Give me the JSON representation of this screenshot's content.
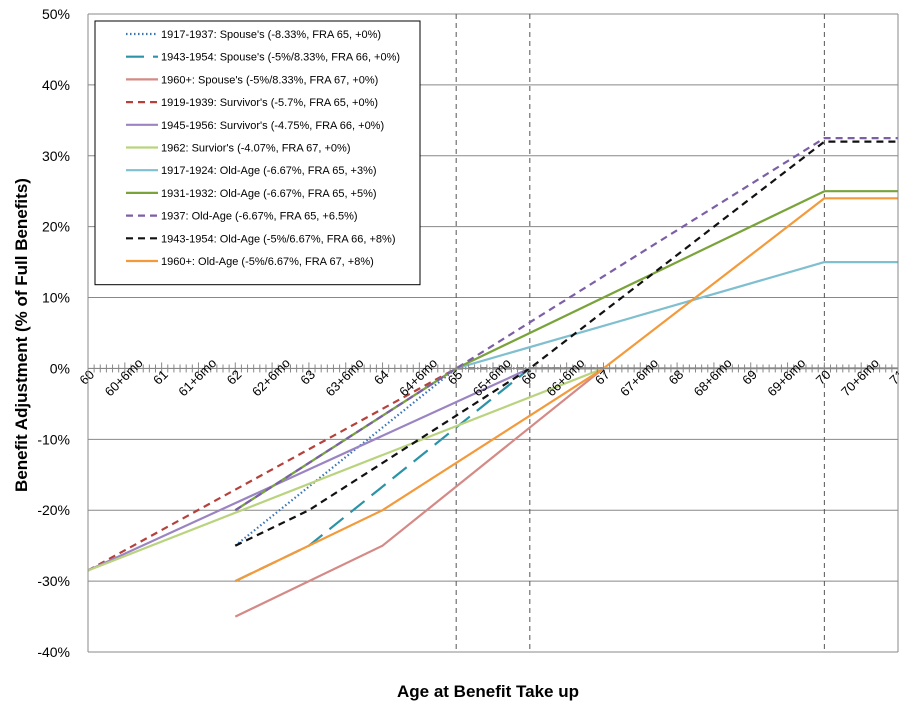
{
  "chart_data": {
    "type": "line",
    "title": "",
    "xlabel": "Age at Benefit Take up",
    "ylabel": "Benefit Adjustment (% of Full Benefits)",
    "ylim": [
      -40,
      50
    ],
    "yticks": [
      -40,
      -30,
      -20,
      -10,
      0,
      10,
      20,
      30,
      40,
      50
    ],
    "ytick_labels": [
      "-40%",
      "-30%",
      "-20%",
      "-10%",
      "0%",
      "10%",
      "20%",
      "30%",
      "40%",
      "50%"
    ],
    "xlim": [
      60,
      71
    ],
    "x_tick_labels": [
      "60",
      "60+6mo",
      "61",
      "61+6mo",
      "62",
      "62+6mo",
      "63",
      "63+6mo",
      "64",
      "64+6mo",
      "65",
      "65+6mo",
      "66",
      "66+6mo",
      "67",
      "67+6mo",
      "68",
      "68+6mo",
      "69",
      "69+6mo",
      "70",
      "70+6mo",
      "71"
    ],
    "x_tick_values": [
      60,
      60.5,
      61,
      61.5,
      62,
      62.5,
      63,
      63.5,
      64,
      64.5,
      65,
      65.5,
      66,
      66.5,
      67,
      67.5,
      68,
      68.5,
      69,
      69.5,
      70,
      70.5,
      71
    ],
    "vertical_reference_lines": [
      65,
      66,
      70
    ],
    "grid": "horizontal",
    "legend_position": "top-left",
    "series": [
      {
        "name": "1917-1937: Spouse's (-8.33%, FRA 65, +0%)",
        "color": "#3a73b5",
        "dash": "dotted",
        "x": [
          62,
          65,
          71
        ],
        "y": [
          -25,
          0,
          0
        ]
      },
      {
        "name": "1943-1954: Spouse's (-5%/8.33%, FRA 66, +0%)",
        "color": "#2a93a8",
        "dash": "longdash",
        "x": [
          62,
          63,
          66,
          71
        ],
        "y": [
          -30,
          -25,
          0,
          0
        ]
      },
      {
        "name": "1960+: Spouse's (-5%/8.33%, FRA 67, +0%)",
        "color": "#d48a86",
        "dash": "solid",
        "x": [
          62,
          64,
          67,
          71
        ],
        "y": [
          -35,
          -25,
          0,
          0
        ]
      },
      {
        "name": "1919-1939: Survivor's (-5.7%, FRA 65, +0%)",
        "color": "#b5413b",
        "dash": "dashed",
        "x": [
          60,
          65,
          71
        ],
        "y": [
          -28.5,
          0,
          0
        ]
      },
      {
        "name": "1945-1956: Survivor's (-4.75%, FRA 66, +0%)",
        "color": "#9b84c2",
        "dash": "solid",
        "x": [
          60,
          66,
          71
        ],
        "y": [
          -28.5,
          0,
          0
        ]
      },
      {
        "name": "1962: Survior's (-4.07%, FRA 67, +0%)",
        "color": "#b9d37e",
        "dash": "solid",
        "x": [
          60,
          67,
          71
        ],
        "y": [
          -28.5,
          0,
          0
        ]
      },
      {
        "name": "1917-1924: Old-Age (-6.67%, FRA 65, +3%)",
        "color": "#7fbfcf",
        "dash": "solid",
        "x": [
          62,
          65,
          70,
          71
        ],
        "y": [
          -20,
          0,
          15,
          15
        ]
      },
      {
        "name": "1931-1932: Old-Age (-6.67%, FRA 65, +5%)",
        "color": "#7aa33a",
        "dash": "solid",
        "x": [
          62,
          65,
          70,
          71
        ],
        "y": [
          -20,
          0,
          25,
          25
        ]
      },
      {
        "name": "1937: Old-Age (-6.67%, FRA 65, +6.5%)",
        "color": "#7d5fa6",
        "dash": "dashed",
        "x": [
          62,
          65,
          70,
          71
        ],
        "y": [
          -20,
          0,
          32.5,
          32.5
        ]
      },
      {
        "name": "1943-1954: Old-Age (-5%/6.67%, FRA 66, +8%)",
        "color": "#111111",
        "dash": "dashed",
        "x": [
          62,
          63,
          66,
          70,
          71
        ],
        "y": [
          -25,
          -20,
          0,
          32,
          32
        ]
      },
      {
        "name": "1960+: Old-Age (-5%/6.67%, FRA 67, +8%)",
        "color": "#f39a3b",
        "dash": "solid",
        "x": [
          62,
          64,
          67,
          70,
          71
        ],
        "y": [
          -30,
          -20,
          0,
          24,
          24
        ]
      }
    ]
  }
}
